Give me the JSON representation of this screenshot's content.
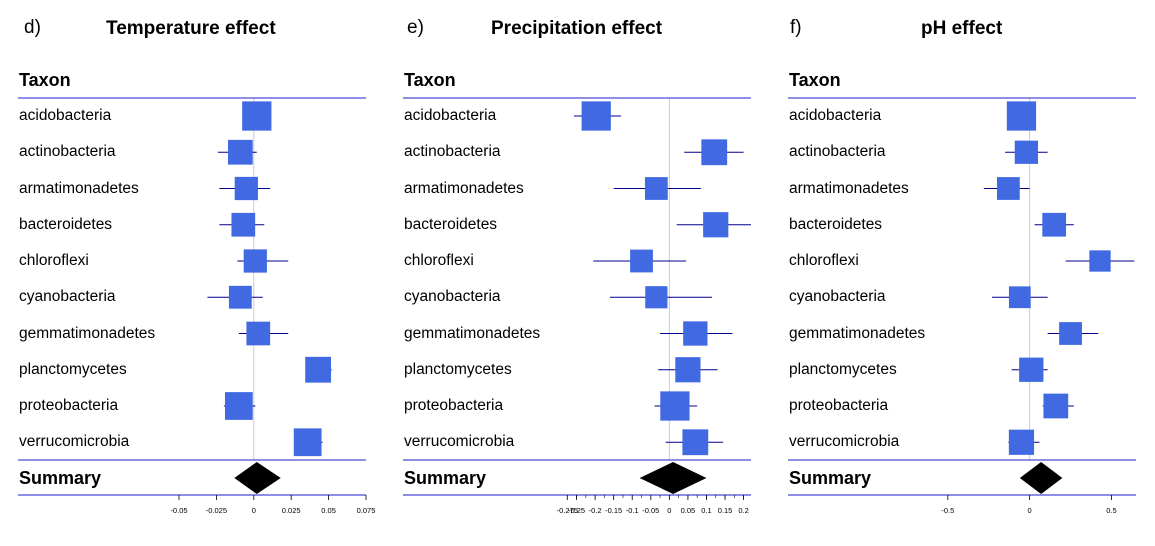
{
  "chart_data": [
    {
      "type": "forest",
      "panel_label": "d)",
      "title": "Temperature effect",
      "column_header": "Taxon",
      "summary_label": "Summary",
      "xlim": [
        -0.05,
        0.075
      ],
      "x_ticks": [
        "-0.05",
        "-0.025",
        "0",
        "0.025",
        "0.05",
        "0.075"
      ],
      "x_tick_values": [
        -0.05,
        -0.025,
        0,
        0.025,
        0.05,
        0.075
      ],
      "minor_ticks": false,
      "rows": [
        {
          "label": "acidobacteria",
          "est": 0.002,
          "lo": 0.002,
          "hi": 0.002,
          "weight": 0.95
        },
        {
          "label": "actinobacteria",
          "est": -0.009,
          "lo": -0.024,
          "hi": 0.002,
          "weight": 0.65
        },
        {
          "label": "armatimonadetes",
          "est": -0.005,
          "lo": -0.023,
          "hi": 0.011,
          "weight": 0.55
        },
        {
          "label": "bacteroidetes",
          "est": -0.007,
          "lo": -0.023,
          "hi": 0.007,
          "weight": 0.58
        },
        {
          "label": "chloroflexi",
          "est": 0.001,
          "lo": -0.011,
          "hi": 0.023,
          "weight": 0.55
        },
        {
          "label": "cyanobacteria",
          "est": -0.009,
          "lo": -0.031,
          "hi": 0.006,
          "weight": 0.52
        },
        {
          "label": "gemmatimonadetes",
          "est": 0.003,
          "lo": -0.01,
          "hi": 0.023,
          "weight": 0.58
        },
        {
          "label": "planctomycetes",
          "est": 0.043,
          "lo": 0.035,
          "hi": 0.052,
          "weight": 0.72
        },
        {
          "label": "proteobacteria",
          "est": -0.01,
          "lo": -0.02,
          "hi": 0.001,
          "weight": 0.85
        },
        {
          "label": "verrucomicrobia",
          "est": 0.036,
          "lo": 0.028,
          "hi": 0.046,
          "weight": 0.85
        }
      ],
      "summary": {
        "est": 0.002,
        "lo": -0.013,
        "hi": 0.018
      }
    },
    {
      "type": "forest",
      "panel_label": "e)",
      "title": "Precipitation effect",
      "column_header": "Taxon",
      "summary_label": "Summary",
      "xlim": [
        -0.3,
        0.22
      ],
      "x_ticks": [
        "-0.275",
        "-0.25",
        "-0.2",
        "-0.15",
        "-0.1",
        "-0.05",
        "0",
        "0.05",
        "0.1",
        "0.15",
        "0.2"
      ],
      "x_tick_values": [
        -0.275,
        -0.25,
        -0.2,
        -0.15,
        -0.1,
        -0.05,
        0,
        0.05,
        0.1,
        0.15,
        0.2
      ],
      "minor_ticks": true,
      "rows": [
        {
          "label": "acidobacteria",
          "est": -0.197,
          "lo": -0.257,
          "hi": -0.13,
          "weight": 0.95
        },
        {
          "label": "actinobacteria",
          "est": 0.121,
          "lo": 0.04,
          "hi": 0.2,
          "weight": 0.72
        },
        {
          "label": "armatimonadetes",
          "est": -0.035,
          "lo": -0.15,
          "hi": 0.085,
          "weight": 0.52
        },
        {
          "label": "bacteroidetes",
          "est": 0.125,
          "lo": 0.02,
          "hi": 0.22,
          "weight": 0.68
        },
        {
          "label": "chloroflexi",
          "est": -0.075,
          "lo": -0.205,
          "hi": 0.045,
          "weight": 0.52
        },
        {
          "label": "cyanobacteria",
          "est": -0.035,
          "lo": -0.16,
          "hi": 0.115,
          "weight": 0.48
        },
        {
          "label": "gemmatimonadetes",
          "est": 0.07,
          "lo": -0.025,
          "hi": 0.17,
          "weight": 0.62
        },
        {
          "label": "planctomycetes",
          "est": 0.05,
          "lo": -0.03,
          "hi": 0.13,
          "weight": 0.68
        },
        {
          "label": "proteobacteria",
          "est": 0.015,
          "lo": -0.04,
          "hi": 0.075,
          "weight": 0.95
        },
        {
          "label": "verrucomicrobia",
          "est": 0.07,
          "lo": -0.01,
          "hi": 0.145,
          "weight": 0.72
        }
      ],
      "summary": {
        "est": 0.01,
        "lo": -0.08,
        "hi": 0.1
      }
    },
    {
      "type": "forest",
      "panel_label": "f)",
      "title": "pH effect",
      "column_header": "Taxon",
      "summary_label": "Summary",
      "xlim": [
        -1.0,
        0.65
      ],
      "x_ticks": [
        "-0.5",
        "0",
        "0.5"
      ],
      "x_tick_values": [
        -0.5,
        0,
        0.5
      ],
      "minor_ticks": false,
      "rows": [
        {
          "label": "acidobacteria",
          "est": -0.05,
          "lo": -0.05,
          "hi": -0.05,
          "weight": 0.95
        },
        {
          "label": "actinobacteria",
          "est": -0.02,
          "lo": -0.15,
          "hi": 0.11,
          "weight": 0.55
        },
        {
          "label": "armatimonadetes",
          "est": -0.13,
          "lo": -0.28,
          "hi": 0.0,
          "weight": 0.52
        },
        {
          "label": "bacteroidetes",
          "est": 0.15,
          "lo": 0.03,
          "hi": 0.27,
          "weight": 0.58
        },
        {
          "label": "chloroflexi",
          "est": 0.43,
          "lo": 0.22,
          "hi": 0.64,
          "weight": 0.42
        },
        {
          "label": "cyanobacteria",
          "est": -0.06,
          "lo": -0.23,
          "hi": 0.11,
          "weight": 0.45
        },
        {
          "label": "gemmatimonadetes",
          "est": 0.25,
          "lo": 0.11,
          "hi": 0.42,
          "weight": 0.52
        },
        {
          "label": "planctomycetes",
          "est": 0.01,
          "lo": -0.11,
          "hi": 0.11,
          "weight": 0.62
        },
        {
          "label": "proteobacteria",
          "est": 0.16,
          "lo": 0.08,
          "hi": 0.27,
          "weight": 0.65
        },
        {
          "label": "verrucomicrobia",
          "est": -0.05,
          "lo": -0.13,
          "hi": 0.06,
          "weight": 0.68
        }
      ],
      "summary": {
        "est": 0.07,
        "lo": -0.06,
        "hi": 0.2
      }
    }
  ],
  "colors": {
    "box": "#4169e1",
    "ci": "#00008b",
    "rule": "#4b4bd6",
    "zero": "#cccccc",
    "diamond": "#000000"
  }
}
